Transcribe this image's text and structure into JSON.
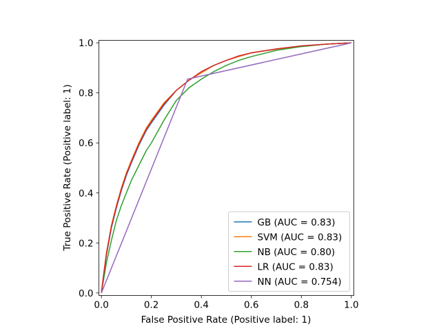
{
  "chart_data": {
    "type": "line",
    "title": "",
    "xlabel": "False Positive Rate (Positive label: 1)",
    "ylabel": "True Positive Rate (Positive label: 1)",
    "xlim": [
      -0.01,
      1.01
    ],
    "ylim": [
      -0.01,
      1.01
    ],
    "x_ticks": [
      0.0,
      0.2,
      0.4,
      0.6,
      0.8,
      1.0
    ],
    "y_ticks": [
      0.0,
      0.2,
      0.4,
      0.6,
      0.8,
      1.0
    ],
    "x_tick_labels": [
      "0.0",
      "0.2",
      "0.4",
      "0.6",
      "0.8",
      "1.0"
    ],
    "y_tick_labels": [
      "0.0",
      "0.2",
      "0.4",
      "0.6",
      "0.8",
      "1.0"
    ],
    "grid": false,
    "legend_position": "lower-right",
    "series": [
      {
        "name": "GB (AUC = 0.83)",
        "color": "#1f77b4",
        "x": [
          0.0,
          0.01,
          0.02,
          0.04,
          0.06,
          0.08,
          0.1,
          0.12,
          0.15,
          0.18,
          0.2,
          0.25,
          0.3,
          0.35,
          0.4,
          0.45,
          0.5,
          0.55,
          0.6,
          0.7,
          0.8,
          0.9,
          1.0
        ],
        "y": [
          0.0,
          0.08,
          0.15,
          0.26,
          0.34,
          0.41,
          0.47,
          0.52,
          0.59,
          0.65,
          0.68,
          0.75,
          0.81,
          0.85,
          0.88,
          0.91,
          0.93,
          0.945,
          0.96,
          0.975,
          0.987,
          0.995,
          1.0
        ]
      },
      {
        "name": "SVM (AUC = 0.83)",
        "color": "#ff7f0e",
        "x": [
          0.0,
          0.01,
          0.02,
          0.04,
          0.06,
          0.08,
          0.1,
          0.12,
          0.15,
          0.18,
          0.2,
          0.25,
          0.3,
          0.35,
          0.4,
          0.45,
          0.5,
          0.55,
          0.6,
          0.7,
          0.8,
          0.9,
          1.0
        ],
        "y": [
          0.0,
          0.08,
          0.16,
          0.27,
          0.35,
          0.42,
          0.48,
          0.53,
          0.6,
          0.66,
          0.69,
          0.76,
          0.81,
          0.85,
          0.88,
          0.91,
          0.93,
          0.945,
          0.96,
          0.975,
          0.987,
          0.995,
          1.0
        ]
      },
      {
        "name": "NB (AUC = 0.80)",
        "color": "#2ca02c",
        "x": [
          0.0,
          0.01,
          0.02,
          0.04,
          0.06,
          0.08,
          0.1,
          0.12,
          0.15,
          0.18,
          0.2,
          0.25,
          0.3,
          0.35,
          0.4,
          0.45,
          0.5,
          0.55,
          0.6,
          0.7,
          0.8,
          0.9,
          1.0
        ],
        "y": [
          0.0,
          0.06,
          0.12,
          0.21,
          0.29,
          0.35,
          0.4,
          0.45,
          0.51,
          0.57,
          0.6,
          0.69,
          0.77,
          0.82,
          0.855,
          0.885,
          0.91,
          0.93,
          0.945,
          0.97,
          0.985,
          0.995,
          1.0
        ]
      },
      {
        "name": "LR (AUC = 0.83)",
        "color": "#d62728",
        "x": [
          0.0,
          0.01,
          0.02,
          0.04,
          0.06,
          0.08,
          0.1,
          0.12,
          0.15,
          0.18,
          0.2,
          0.25,
          0.3,
          0.35,
          0.4,
          0.45,
          0.5,
          0.55,
          0.6,
          0.7,
          0.8,
          0.9,
          1.0
        ],
        "y": [
          0.0,
          0.08,
          0.155,
          0.265,
          0.345,
          0.415,
          0.475,
          0.525,
          0.595,
          0.655,
          0.685,
          0.755,
          0.81,
          0.85,
          0.885,
          0.91,
          0.93,
          0.948,
          0.96,
          0.976,
          0.988,
          0.995,
          1.0
        ]
      },
      {
        "name": "NN (AUC = 0.754)",
        "color": "#9467bd",
        "x": [
          0.0,
          0.345,
          1.0
        ],
        "y": [
          0.0,
          0.855,
          1.0
        ]
      }
    ]
  }
}
